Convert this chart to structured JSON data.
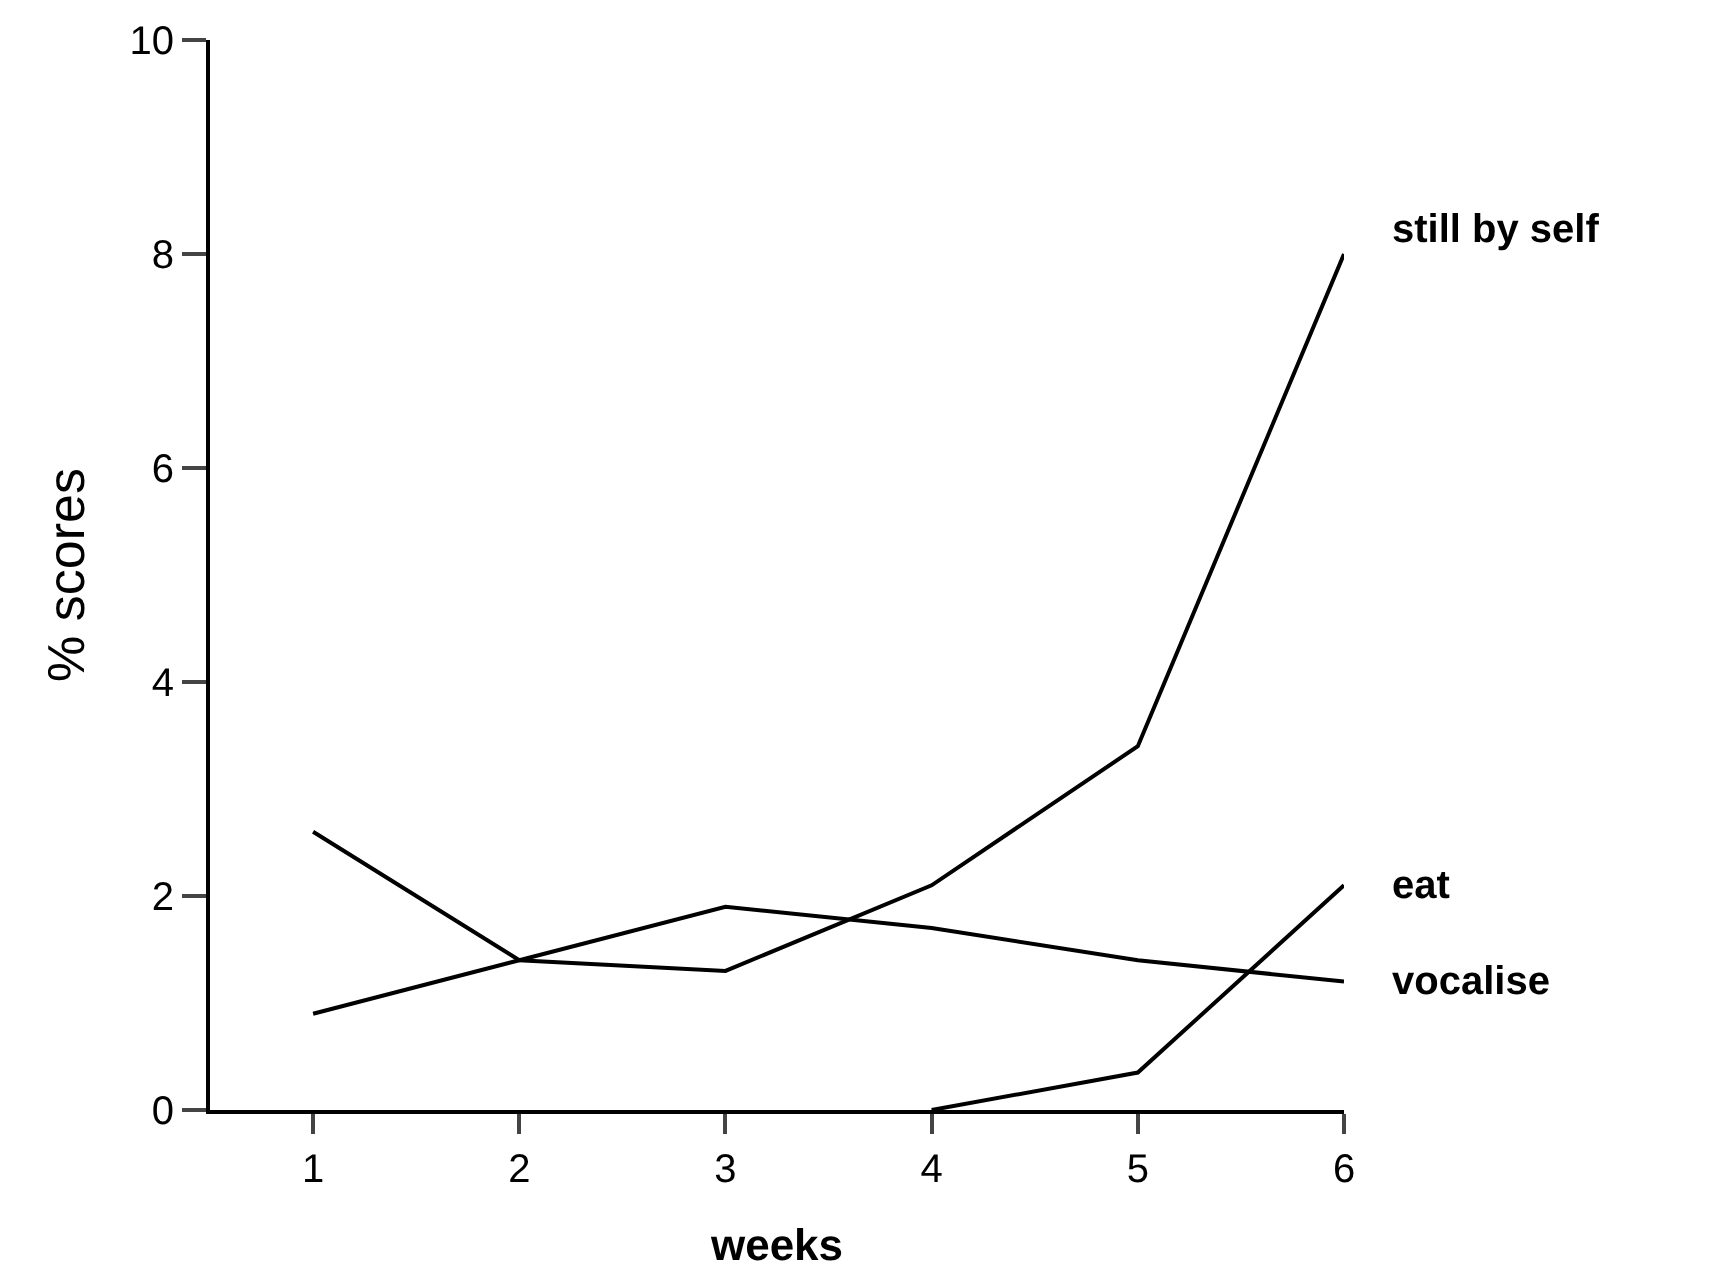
{
  "chart_data": {
    "type": "line",
    "xlabel": "weeks",
    "ylabel": "% scores",
    "x": [
      1,
      2,
      3,
      4,
      5,
      6
    ],
    "xlim": [
      0.5,
      6
    ],
    "xticks": [
      1,
      2,
      3,
      4,
      5,
      6
    ],
    "ylim": [
      0,
      10
    ],
    "yticks": [
      0,
      2,
      4,
      6,
      8,
      10
    ],
    "grid": false,
    "legend": false,
    "marker": "none",
    "line_style": "solid",
    "series": [
      {
        "name": "still by self",
        "color": "#000000",
        "values": [
          2.6,
          1.4,
          1.3,
          2.1,
          3.4,
          8.0
        ]
      },
      {
        "name": "eat",
        "color": "#000000",
        "values": [
          null,
          null,
          null,
          0,
          0.35,
          2.1
        ]
      },
      {
        "name": "vocalise",
        "color": "#000000",
        "values": [
          0.9,
          1.4,
          1.9,
          1.7,
          1.4,
          1.2
        ]
      }
    ]
  }
}
